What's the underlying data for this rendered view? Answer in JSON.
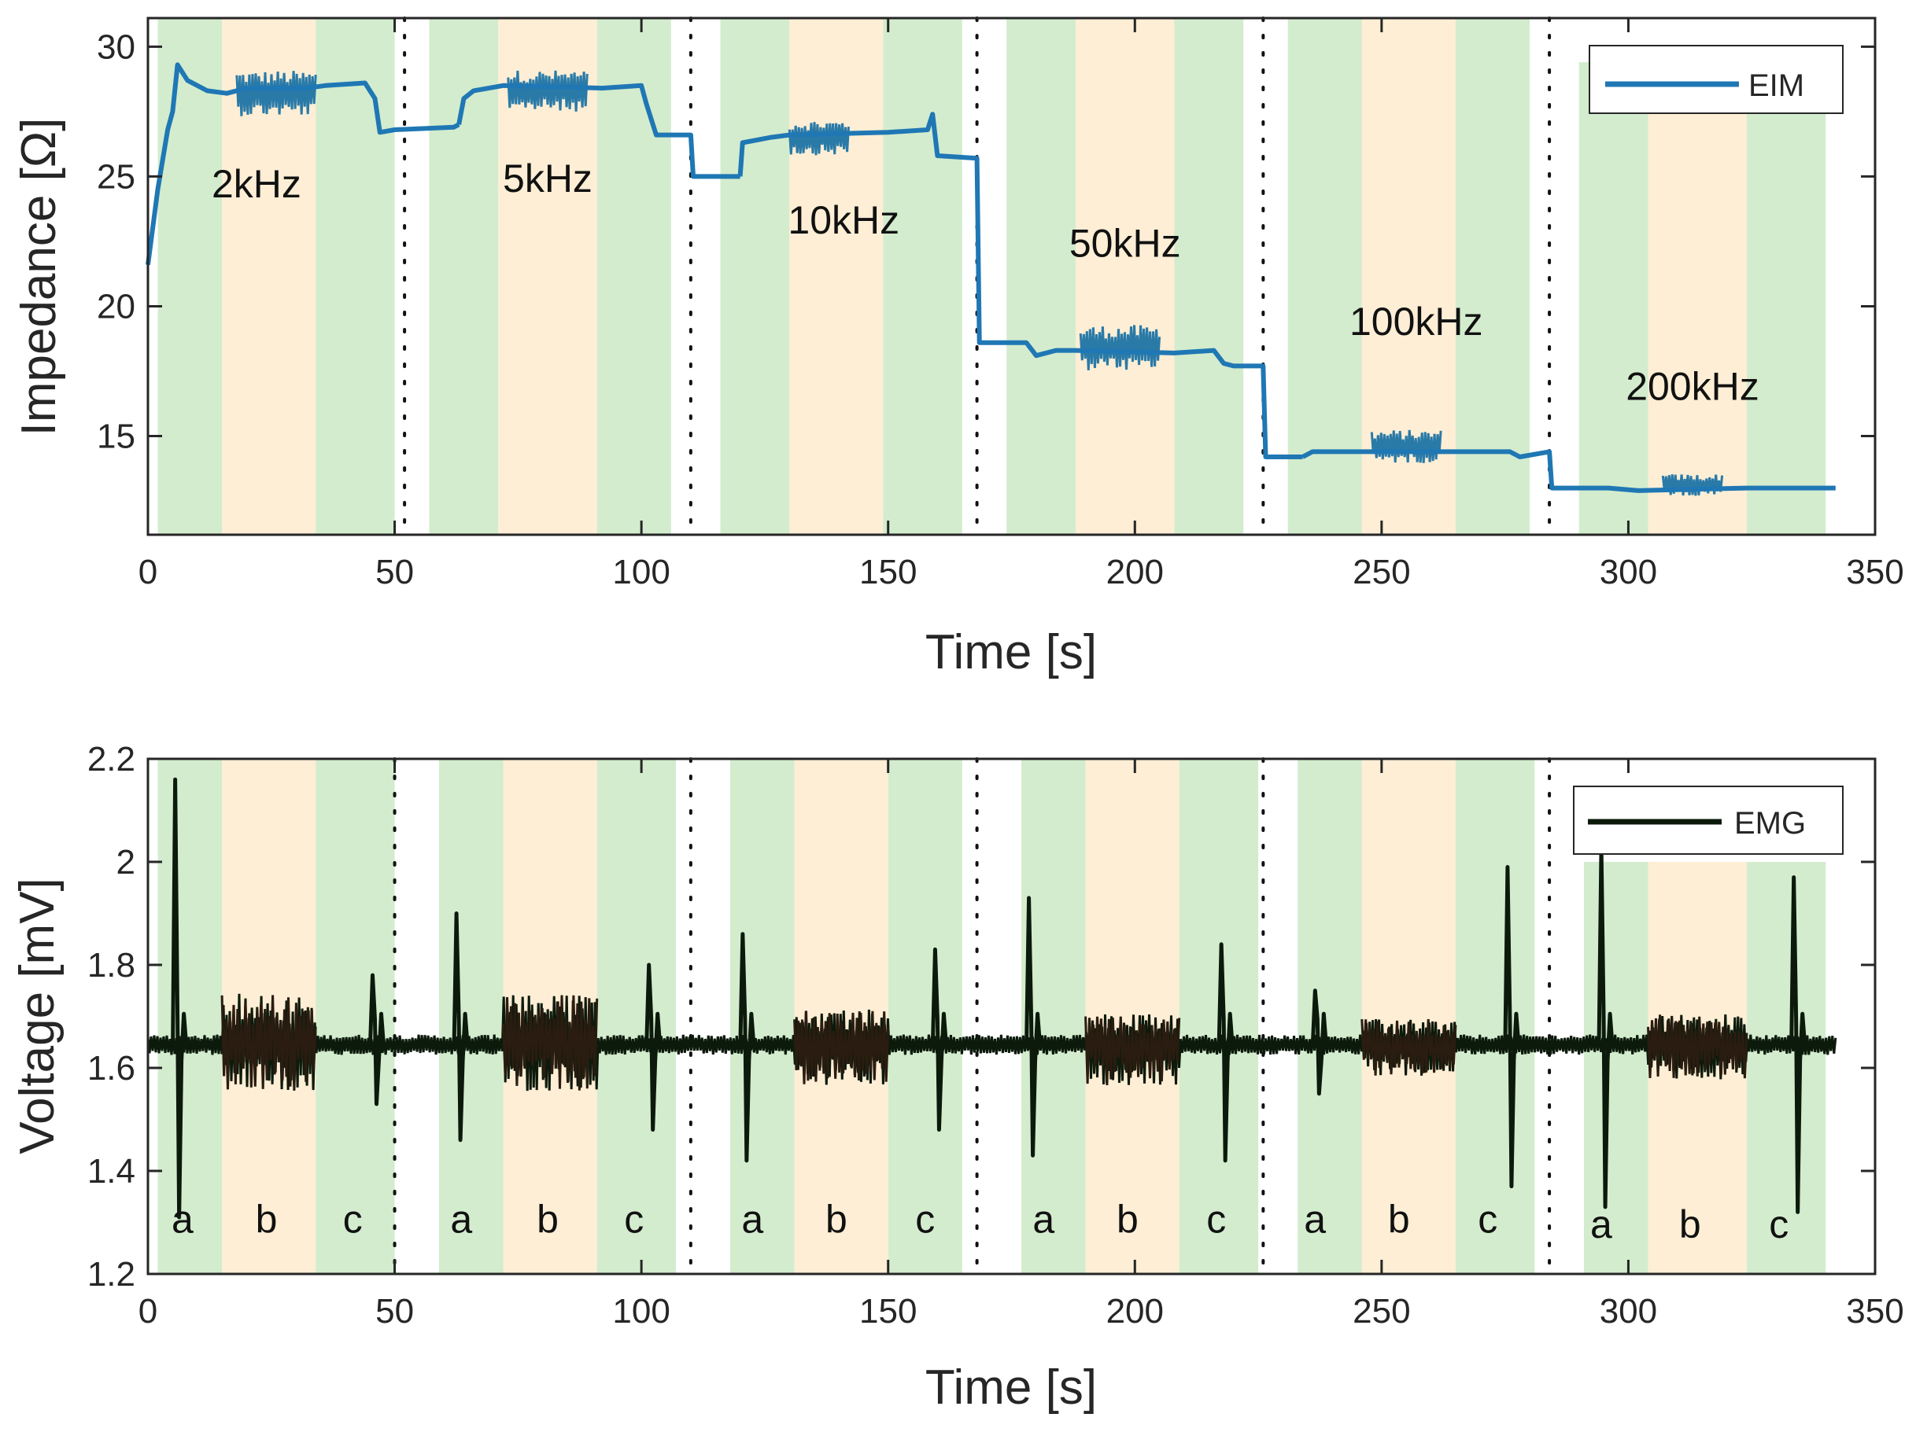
{
  "colors": {
    "green_band": "#d3ecce",
    "orange_band": "#fdeed5",
    "eim_line": "#1f77b4",
    "emg_dark": "#0c1a0c",
    "emg_orange_region": "#2a1c10",
    "axis": "#262626"
  },
  "chart_data": [
    {
      "type": "line",
      "title": "",
      "xlabel": "Time [s]",
      "ylabel": "Impedance [Ω]",
      "xlim": [
        0,
        350
      ],
      "ylim": [
        11.2,
        31.1
      ],
      "xticks": [
        0,
        50,
        100,
        150,
        200,
        250,
        300,
        350
      ],
      "xtick_labels": [
        "0",
        "50",
        "100",
        "150",
        "200",
        "250",
        "300",
        "350"
      ],
      "yticks": [
        15,
        20,
        25,
        30
      ],
      "ytick_labels": [
        "15",
        "20",
        "25",
        "30"
      ],
      "legend": {
        "label": "EIM",
        "position": "top-right"
      },
      "frequency_labels": [
        {
          "text": "2kHz",
          "x": 22,
          "y": 24.2
        },
        {
          "text": "5kHz",
          "x": 81,
          "y": 24.4
        },
        {
          "text": "10kHz",
          "x": 141,
          "y": 22.8
        },
        {
          "text": "50kHz",
          "x": 198,
          "y": 21.9
        },
        {
          "text": "100kHz",
          "x": 257,
          "y": 18.9
        },
        {
          "text": "200kHz",
          "x": 313,
          "y": 16.4
        }
      ],
      "bands": [
        {
          "x0": 2,
          "x1": 15,
          "kind": "green"
        },
        {
          "x0": 15,
          "x1": 34,
          "kind": "orange"
        },
        {
          "x0": 34,
          "x1": 50,
          "kind": "green"
        },
        {
          "x0": 57,
          "x1": 71,
          "kind": "green"
        },
        {
          "x0": 71,
          "x1": 91,
          "kind": "orange"
        },
        {
          "x0": 91,
          "x1": 106,
          "kind": "green"
        },
        {
          "x0": 116,
          "x1": 130,
          "kind": "green"
        },
        {
          "x0": 130,
          "x1": 149,
          "kind": "orange"
        },
        {
          "x0": 149,
          "x1": 165,
          "kind": "green"
        },
        {
          "x0": 174,
          "x1": 188,
          "kind": "green"
        },
        {
          "x0": 188,
          "x1": 208,
          "kind": "orange"
        },
        {
          "x0": 208,
          "x1": 222,
          "kind": "green"
        },
        {
          "x0": 231,
          "x1": 246,
          "kind": "green"
        },
        {
          "x0": 246,
          "x1": 265,
          "kind": "orange"
        },
        {
          "x0": 265,
          "x1": 280,
          "kind": "green"
        },
        {
          "x0": 290,
          "x1": 304,
          "kind": "green",
          "ymax": 29.4
        },
        {
          "x0": 304,
          "x1": 324,
          "kind": "orange",
          "ymax": 29.4
        },
        {
          "x0": 324,
          "x1": 340,
          "kind": "green",
          "ymax": 29.4
        }
      ],
      "separators": [
        52,
        110,
        168,
        226,
        284
      ],
      "segments": [
        [
          0,
          21.6,
          2,
          24.5,
          4,
          26.8,
          5,
          27.5,
          6,
          29.3,
          8,
          28.7,
          12,
          28.3,
          16,
          28.2,
          20,
          28.4,
          32,
          28.4,
          36,
          28.5,
          44,
          28.6,
          46,
          28.0,
          47,
          26.7,
          50,
          26.8,
          62,
          26.9,
          63,
          27.0
        ],
        [
          63,
          27.0,
          64,
          28.0,
          66,
          28.3,
          72,
          28.5,
          92,
          28.4,
          100,
          28.5,
          101,
          27.8,
          103,
          26.6,
          109,
          26.6,
          110,
          26.6,
          110.5,
          25.0,
          120,
          25.0
        ],
        [
          120,
          25.0,
          120.5,
          26.3,
          126,
          26.5,
          130,
          26.6,
          150,
          26.7,
          158,
          26.8,
          159,
          27.4,
          160,
          25.8,
          168,
          25.7,
          168.5,
          18.6,
          178,
          18.6,
          180,
          18.1,
          184,
          18.3,
          188,
          18.3,
          208,
          18.2,
          216,
          18.3,
          218,
          17.8,
          220,
          17.7,
          226,
          17.7,
          226.5,
          14.2,
          234,
          14.2
        ],
        [
          234,
          14.2,
          236,
          14.4,
          246,
          14.4,
          265,
          14.4,
          276,
          14.4,
          278,
          14.2,
          284,
          14.4,
          284.5,
          13.0,
          296,
          13.0,
          302,
          12.9,
          324,
          13.0,
          342,
          13.0
        ]
      ],
      "noise_regions": [
        {
          "x0": 18,
          "x1": 34,
          "center": 28.2,
          "amp": 1.1
        },
        {
          "x0": 73,
          "x1": 89,
          "center": 28.3,
          "amp": 1.0
        },
        {
          "x0": 130,
          "x1": 142,
          "center": 26.5,
          "amp": 0.85
        },
        {
          "x0": 189,
          "x1": 205,
          "center": 18.4,
          "amp": 1.1
        },
        {
          "x0": 248,
          "x1": 262,
          "center": 14.6,
          "amp": 0.8
        },
        {
          "x0": 307,
          "x1": 319,
          "center": 13.1,
          "amp": 0.55
        }
      ]
    },
    {
      "type": "line",
      "title": "",
      "xlabel": "Time [s]",
      "ylabel": "Voltage [mV]",
      "xlim": [
        0,
        350
      ],
      "ylim": [
        1.2,
        2.2
      ],
      "xticks": [
        0,
        50,
        100,
        150,
        200,
        250,
        300,
        350
      ],
      "xtick_labels": [
        "0",
        "50",
        "100",
        "150",
        "200",
        "250",
        "300",
        "350"
      ],
      "yticks": [
        1.2,
        1.4,
        1.6,
        1.8,
        2,
        2.2
      ],
      "ytick_labels": [
        "1.2",
        "1.4",
        "1.6",
        "1.8",
        "2",
        "2.2"
      ],
      "legend": {
        "label": "EMG",
        "position": "top-right"
      },
      "baseline": 1.645,
      "bands": [
        {
          "x0": 2,
          "x1": 15,
          "kind": "green"
        },
        {
          "x0": 15,
          "x1": 34,
          "kind": "orange"
        },
        {
          "x0": 34,
          "x1": 50,
          "kind": "green"
        },
        {
          "x0": 59,
          "x1": 72,
          "kind": "green"
        },
        {
          "x0": 72,
          "x1": 91,
          "kind": "orange"
        },
        {
          "x0": 91,
          "x1": 107,
          "kind": "green"
        },
        {
          "x0": 118,
          "x1": 131,
          "kind": "green"
        },
        {
          "x0": 131,
          "x1": 150,
          "kind": "orange"
        },
        {
          "x0": 150,
          "x1": 165,
          "kind": "green"
        },
        {
          "x0": 177,
          "x1": 190,
          "kind": "green"
        },
        {
          "x0": 190,
          "x1": 209,
          "kind": "orange"
        },
        {
          "x0": 209,
          "x1": 225,
          "kind": "green"
        },
        {
          "x0": 233,
          "x1": 246,
          "kind": "green"
        },
        {
          "x0": 246,
          "x1": 265,
          "kind": "orange"
        },
        {
          "x0": 265,
          "x1": 281,
          "kind": "green"
        },
        {
          "x0": 291,
          "x1": 304,
          "kind": "green",
          "ymax": 2.0
        },
        {
          "x0": 304,
          "x1": 324,
          "kind": "orange",
          "ymax": 2.0
        },
        {
          "x0": 324,
          "x1": 340,
          "kind": "green",
          "ymax": 2.0
        }
      ],
      "separators": [
        50,
        110,
        168,
        226,
        284
      ],
      "segment_labels": [
        {
          "text": "a",
          "x": 7,
          "y": 1.28
        },
        {
          "text": "b",
          "x": 24,
          "y": 1.28
        },
        {
          "text": "c",
          "x": 41.5,
          "y": 1.28
        },
        {
          "text": "a",
          "x": 63.5,
          "y": 1.28
        },
        {
          "text": "b",
          "x": 81,
          "y": 1.28
        },
        {
          "text": "c",
          "x": 98.5,
          "y": 1.28
        },
        {
          "text": "a",
          "x": 122.5,
          "y": 1.28
        },
        {
          "text": "b",
          "x": 139.5,
          "y": 1.28
        },
        {
          "text": "c",
          "x": 157.5,
          "y": 1.28
        },
        {
          "text": "a",
          "x": 181.5,
          "y": 1.28
        },
        {
          "text": "b",
          "x": 198.5,
          "y": 1.28
        },
        {
          "text": "c",
          "x": 216.5,
          "y": 1.28
        },
        {
          "text": "a",
          "x": 236.5,
          "y": 1.28
        },
        {
          "text": "b",
          "x": 253.5,
          "y": 1.28
        },
        {
          "text": "c",
          "x": 271.5,
          "y": 1.28
        },
        {
          "text": "a",
          "x": 294.5,
          "y": 1.27
        },
        {
          "text": "b",
          "x": 312.5,
          "y": 1.27
        },
        {
          "text": "c",
          "x": 330.5,
          "y": 1.27
        }
      ],
      "spikes": [
        {
          "x": 6,
          "ymax": 2.16,
          "ymin": 1.31
        },
        {
          "x": 46,
          "ymax": 1.78,
          "ymin": 1.53
        },
        {
          "x": 63,
          "ymax": 1.9,
          "ymin": 1.46
        },
        {
          "x": 102,
          "ymax": 1.8,
          "ymin": 1.48
        },
        {
          "x": 121,
          "ymax": 1.86,
          "ymin": 1.42
        },
        {
          "x": 160,
          "ymax": 1.83,
          "ymin": 1.48
        },
        {
          "x": 179,
          "ymax": 1.93,
          "ymin": 1.43
        },
        {
          "x": 218,
          "ymax": 1.84,
          "ymin": 1.42
        },
        {
          "x": 237,
          "ymax": 1.75,
          "ymin": 1.55
        },
        {
          "x": 276,
          "ymax": 1.99,
          "ymin": 1.37
        },
        {
          "x": 295,
          "ymax": 2.03,
          "ymin": 1.33
        },
        {
          "x": 334,
          "ymax": 1.97,
          "ymin": 1.32
        }
      ],
      "noise_regions": [
        {
          "x0": 15,
          "x1": 34,
          "up": 0.1,
          "down": 0.09
        },
        {
          "x0": 72,
          "x1": 91,
          "up": 0.1,
          "down": 0.09
        },
        {
          "x0": 131,
          "x1": 150,
          "up": 0.07,
          "down": 0.08
        },
        {
          "x0": 190,
          "x1": 209,
          "up": 0.06,
          "down": 0.08
        },
        {
          "x0": 246,
          "x1": 265,
          "up": 0.05,
          "down": 0.06
        },
        {
          "x0": 304,
          "x1": 324,
          "up": 0.06,
          "down": 0.07
        }
      ]
    }
  ]
}
